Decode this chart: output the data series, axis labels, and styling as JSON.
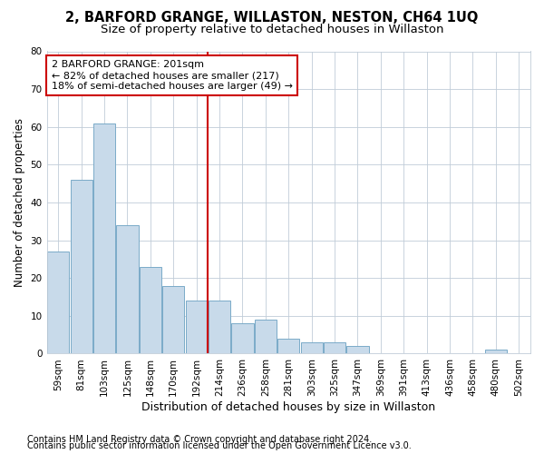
{
  "title": "2, BARFORD GRANGE, WILLASTON, NESTON, CH64 1UQ",
  "subtitle": "Size of property relative to detached houses in Willaston",
  "xlabel": "Distribution of detached houses by size in Willaston",
  "ylabel": "Number of detached properties",
  "categories": [
    "59sqm",
    "81sqm",
    "103sqm",
    "125sqm",
    "148sqm",
    "170sqm",
    "192sqm",
    "214sqm",
    "236sqm",
    "258sqm",
    "281sqm",
    "303sqm",
    "325sqm",
    "347sqm",
    "369sqm",
    "391sqm",
    "413sqm",
    "436sqm",
    "458sqm",
    "480sqm",
    "502sqm"
  ],
  "values": [
    27,
    46,
    61,
    34,
    23,
    18,
    14,
    14,
    8,
    9,
    4,
    3,
    3,
    2,
    0,
    0,
    0,
    0,
    0,
    1,
    0
  ],
  "bar_color": "#c8daea",
  "bar_edge_color": "#7aaac8",
  "vline_color": "#cc0000",
  "vline_x_index": 6.5,
  "ylim": [
    0,
    80
  ],
  "yticks": [
    0,
    10,
    20,
    30,
    40,
    50,
    60,
    70,
    80
  ],
  "annotation_line1": "2 BARFORD GRANGE: 201sqm",
  "annotation_line2": "← 82% of detached houses are smaller (217)",
  "annotation_line3": "18% of semi-detached houses are larger (49) →",
  "annotation_box_facecolor": "#ffffff",
  "annotation_box_edgecolor": "#cc0000",
  "footer1": "Contains HM Land Registry data © Crown copyright and database right 2024.",
  "footer2": "Contains public sector information licensed under the Open Government Licence v3.0.",
  "bg_color": "#ffffff",
  "plot_bg_color": "#ffffff",
  "grid_color": "#c0ccd8",
  "title_fontsize": 10.5,
  "subtitle_fontsize": 9.5,
  "tick_fontsize": 7.5,
  "ylabel_fontsize": 8.5,
  "xlabel_fontsize": 9,
  "annotation_fontsize": 8,
  "footer_fontsize": 7
}
